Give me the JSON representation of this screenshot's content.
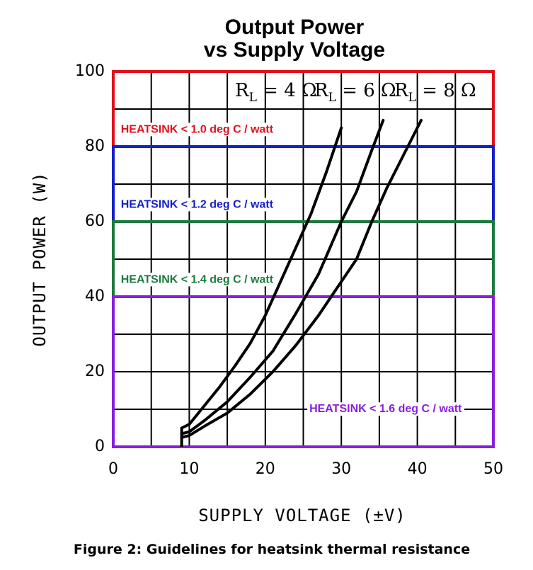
{
  "chart_data": {
    "type": "line",
    "title_lines": [
      "Output Power",
      "vs Supply Voltage"
    ],
    "xlabel": "SUPPLY VOLTAGE (±V)",
    "ylabel": "OUTPUT POWER (W)",
    "xlim": [
      0,
      50
    ],
    "ylim": [
      0,
      100
    ],
    "xticks": [
      0,
      10,
      20,
      30,
      40,
      50
    ],
    "yticks": [
      0,
      20,
      40,
      60,
      80,
      100
    ],
    "grid": true,
    "load_labels": [
      {
        "base": "R",
        "sub": "L",
        "rest": " = 4 Ω"
      },
      {
        "base": "R",
        "sub": "L",
        "rest": " = 6 Ω"
      },
      {
        "base": "R",
        "sub": "L",
        "rest": " = 8 Ω"
      }
    ],
    "series": [
      {
        "x": [
          9,
          10,
          12,
          14,
          16,
          18,
          20,
          22,
          24,
          26,
          28,
          30
        ],
        "y": [
          5,
          6,
          11,
          16,
          21.5,
          27.5,
          35,
          44,
          53,
          62,
          73,
          85
        ]
      },
      {
        "x": [
          9,
          10,
          12,
          15,
          18,
          21,
          24,
          27,
          30,
          32,
          34,
          35.5
        ],
        "y": [
          3.5,
          4,
          7,
          12,
          18.5,
          25.5,
          35.5,
          46,
          60,
          68,
          79,
          87
        ]
      },
      {
        "x": [
          9,
          10,
          12,
          15,
          18,
          21,
          24,
          27,
          30,
          32,
          34,
          36,
          38,
          40.5
        ],
        "y": [
          2.5,
          3,
          5.5,
          9,
          14,
          20,
          27,
          35,
          44,
          50,
          60,
          69,
          77,
          87
        ]
      }
    ],
    "bands": [
      {
        "label": "HEATSINK < 1.0 deg C / watt",
        "y_range": [
          80,
          100
        ],
        "color": "#e0101c"
      },
      {
        "label": "HEATSINK < 1.2 deg C / watt",
        "y_range": [
          60,
          80
        ],
        "color": "#1420c8"
      },
      {
        "label": "HEATSINK < 1.4 deg C / watt",
        "y_range": [
          40,
          60
        ],
        "color": "#1c7a3e"
      },
      {
        "label": "HEATSINK < 1.6 deg C / watt",
        "y_range": [
          0,
          40
        ],
        "color": "#8a1ee0"
      }
    ]
  },
  "caption": "Figure 2: Guidelines for heatsink thermal resistance"
}
